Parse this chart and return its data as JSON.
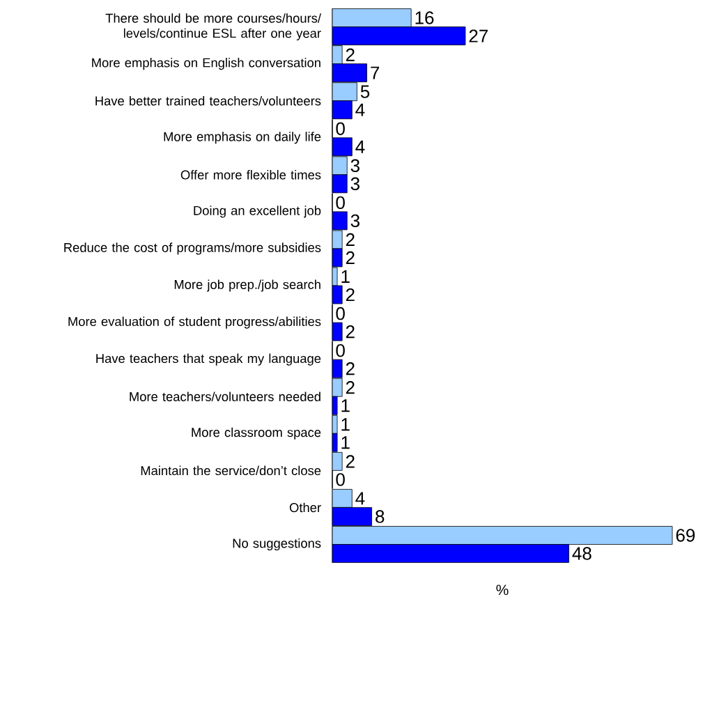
{
  "chart_data": {
    "type": "bar",
    "orientation": "horizontal",
    "xlabel": "%",
    "data_labels": true,
    "categories": [
      "There should be more courses/hours/ levels/continue ESL after one year",
      "More emphasis on English conversation",
      "Have better trained teachers/volunteers",
      "More emphasis on daily life",
      "Offer more flexible times",
      "Doing an excellent job",
      "Reduce the cost of programs/more subsidies",
      "More job prep./job search",
      "More evaluation of student progress/abilities",
      "Have teachers that speak my language",
      "More teachers/volunteers needed",
      "More classroom space",
      "Maintain the service/don’t close",
      "Other",
      "No suggestions"
    ],
    "series": [
      {
        "color": "#99ccff",
        "values": [
          16,
          2,
          5,
          0,
          3,
          0,
          2,
          1,
          0,
          0,
          2,
          1,
          2,
          4,
          69
        ]
      },
      {
        "color": "#0000ff",
        "values": [
          27,
          7,
          4,
          4,
          3,
          3,
          2,
          2,
          2,
          2,
          1,
          1,
          0,
          8,
          48
        ]
      }
    ]
  }
}
